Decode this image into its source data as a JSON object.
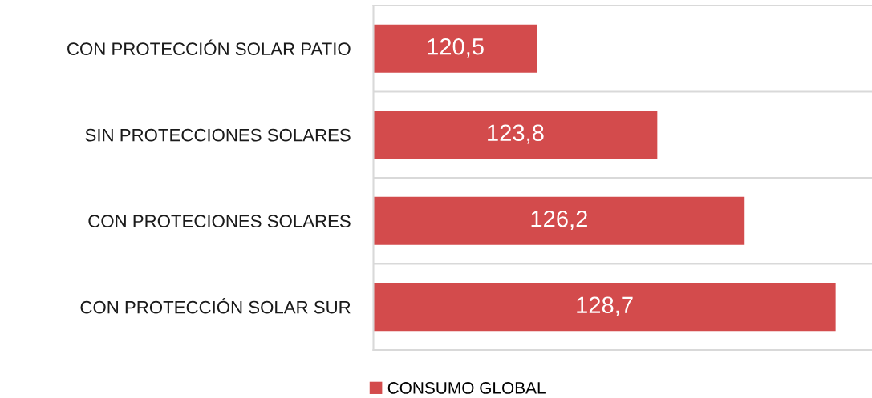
{
  "chart_data": {
    "type": "bar",
    "orientation": "horizontal",
    "categories": [
      "CON PROTECCIÓN SOLAR PATIO",
      "SIN PROTECCIONES SOLARES",
      "CON PROTECIONES SOLARES",
      "CON PROTECCIÓN SOLAR SUR"
    ],
    "series": [
      {
        "name": "CONSUMO GLOBAL",
        "color": "#d34b4c",
        "values": [
          120.5,
          123.8,
          126.2,
          128.7
        ],
        "value_labels": [
          "120,5",
          "123,8",
          "126,2",
          "128,7"
        ]
      }
    ],
    "xlim": [
      116,
      129.7
    ],
    "tick_labels": "y",
    "grid": "y",
    "legend": "bottom"
  }
}
